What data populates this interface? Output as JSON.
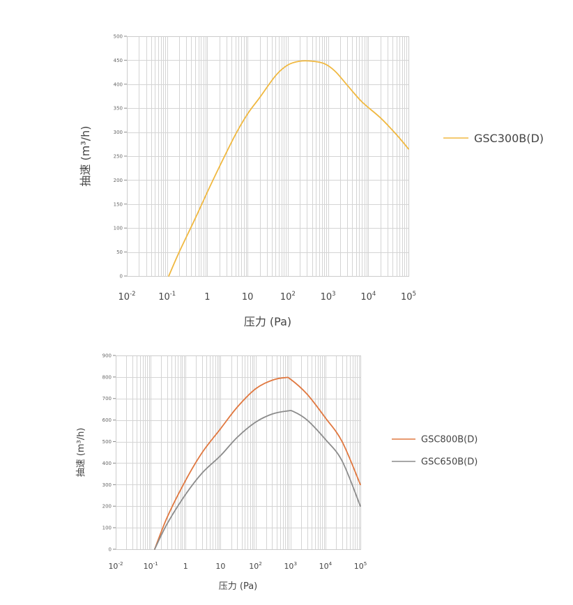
{
  "chart_data": [
    {
      "type": "line",
      "x_scale": "log",
      "xlim": [
        0.01,
        100000
      ],
      "ylim": [
        0,
        500
      ],
      "ylabel": "抽速 (m³/h)",
      "xlabel": "压力 (Pa)",
      "y_ticks": [
        "0",
        "50",
        "100",
        "150",
        "200",
        "250",
        "300",
        "350",
        "400",
        "450",
        "500"
      ],
      "x_ticks": [
        {
          "base": "10",
          "exp": "-2"
        },
        {
          "base": "10",
          "exp": "-1"
        },
        {
          "base": "1",
          "exp": ""
        },
        {
          "base": "10",
          "exp": ""
        },
        {
          "base": "10",
          "exp": "2"
        },
        {
          "base": "10",
          "exp": "3"
        },
        {
          "base": "10",
          "exp": "4"
        },
        {
          "base": "10",
          "exp": "5"
        }
      ],
      "grid": true,
      "legend_position": "right",
      "series": [
        {
          "name": "GSC300B(D)",
          "color": "#f0b840",
          "x": [
            0.11,
            0.2,
            0.5,
            1,
            2,
            5,
            10,
            20,
            50,
            100,
            200,
            400,
            800,
            1500,
            3000,
            7000,
            20000,
            50000,
            100000
          ],
          "y": [
            0,
            50,
            120,
            175,
            228,
            295,
            338,
            372,
            418,
            440,
            448,
            448,
            443,
            427,
            398,
            363,
            330,
            295,
            265
          ]
        }
      ]
    },
    {
      "type": "line",
      "x_scale": "log",
      "xlim": [
        0.01,
        100000
      ],
      "ylim": [
        0,
        900
      ],
      "ylabel": "抽速 (m³/h)",
      "xlabel": "压力 (Pa)",
      "y_ticks": [
        "0",
        "100",
        "200",
        "300",
        "400",
        "500",
        "600",
        "700",
        "800",
        "900"
      ],
      "x_ticks": [
        {
          "base": "10",
          "exp": "-2"
        },
        {
          "base": "10",
          "exp": "-1"
        },
        {
          "base": "1",
          "exp": ""
        },
        {
          "base": "10",
          "exp": ""
        },
        {
          "base": "10",
          "exp": "2"
        },
        {
          "base": "10",
          "exp": "3"
        },
        {
          "base": "10",
          "exp": "4"
        },
        {
          "base": "10",
          "exp": "5"
        }
      ],
      "grid": true,
      "legend_position": "right",
      "series": [
        {
          "name": "GSC800B(D)",
          "color": "#e07840",
          "x": [
            0.13,
            0.3,
            1,
            3,
            10,
            30,
            100,
            300,
            700,
            1000,
            3000,
            10000,
            30000,
            100000
          ],
          "y": [
            0,
            150,
            320,
            450,
            560,
            660,
            745,
            785,
            797,
            790,
            720,
            610,
            500,
            300
          ]
        },
        {
          "name": "GSC650B(D)",
          "color": "#8c8c8c",
          "x": [
            0.13,
            0.3,
            1,
            3,
            10,
            30,
            100,
            300,
            800,
            1200,
            3000,
            10000,
            30000,
            100000
          ],
          "y": [
            0,
            120,
            255,
            355,
            435,
            520,
            590,
            628,
            642,
            640,
            600,
            510,
            410,
            200
          ]
        }
      ]
    }
  ]
}
